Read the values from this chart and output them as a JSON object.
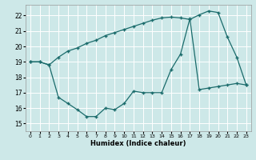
{
  "background_color": "#cde8e8",
  "grid_color": "#ffffff",
  "line_color": "#1a6b6b",
  "xlabel": "Humidex (Indice chaleur)",
  "xlim": [
    -0.5,
    23.5
  ],
  "ylim": [
    14.5,
    22.7
  ],
  "yticks": [
    15,
    16,
    17,
    18,
    19,
    20,
    21,
    22
  ],
  "xticks": [
    0,
    1,
    2,
    3,
    4,
    5,
    6,
    7,
    8,
    9,
    10,
    11,
    12,
    13,
    14,
    15,
    16,
    17,
    18,
    19,
    20,
    21,
    22,
    23
  ],
  "line1_x": [
    0,
    1,
    2,
    3,
    4,
    5,
    6,
    7,
    8,
    9,
    10,
    11,
    12,
    13,
    14,
    15,
    16,
    17,
    18,
    19,
    20,
    21,
    22,
    23
  ],
  "line1_y": [
    19.0,
    19.0,
    18.8,
    19.3,
    19.7,
    19.9,
    20.2,
    20.4,
    20.7,
    20.9,
    21.1,
    21.3,
    21.5,
    21.7,
    21.85,
    21.9,
    21.85,
    21.75,
    22.05,
    22.3,
    22.2,
    20.6,
    19.3,
    17.5
  ],
  "line2_x": [
    0,
    1,
    2,
    3,
    4,
    5,
    6,
    7,
    8,
    9,
    10,
    11,
    12,
    13,
    14,
    15,
    16,
    17,
    18,
    19,
    20,
    21,
    22,
    23
  ],
  "line2_y": [
    19.0,
    19.0,
    18.8,
    16.7,
    16.3,
    15.9,
    15.45,
    15.45,
    16.0,
    15.9,
    16.3,
    17.1,
    17.0,
    17.0,
    17.0,
    18.5,
    19.5,
    21.8,
    17.2,
    17.3,
    17.4,
    17.5,
    17.6,
    17.5
  ]
}
